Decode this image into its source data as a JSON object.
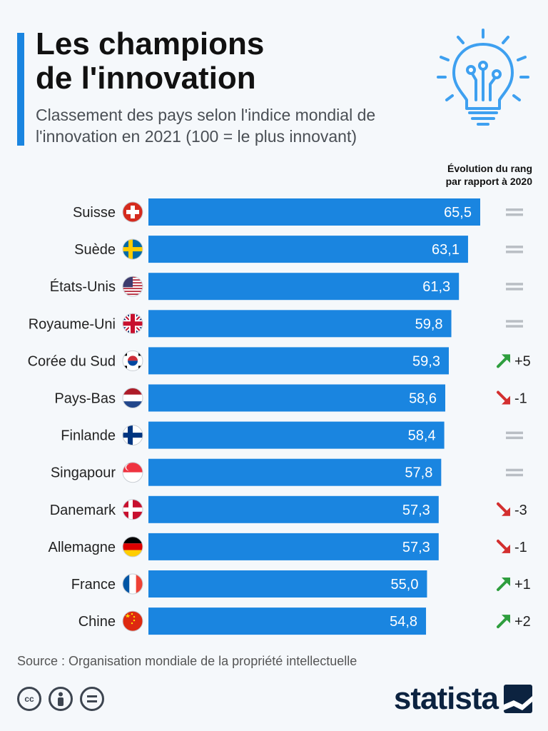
{
  "title": [
    "Les champions",
    "de l'innovation"
  ],
  "subtitle": "Classement des pays selon l'indice mondial de l'innovation en 2021 (100 = le plus innovant)",
  "evolution_header": [
    "Évolution du rang",
    "par rapport à 2020"
  ],
  "source": "Source : Organisation mondiale de la propriété intellectuelle",
  "brand": "statista",
  "license_icons": [
    "cc-icon",
    "by-person-icon",
    "nd-equals-icon"
  ],
  "colors": {
    "bar": "#1a85e0",
    "accent": "#1a85e0",
    "up": "#2e9e3e",
    "down": "#d32f2f",
    "equal": "#b9bec4",
    "brand": "#0c2340"
  },
  "chart_data": {
    "type": "bar",
    "orientation": "horizontal",
    "categories": [
      "Suisse",
      "Suède",
      "États-Unis",
      "Royaume-Uni",
      "Corée du Sud",
      "Pays-Bas",
      "Finlande",
      "Singapour",
      "Danemark",
      "Allemagne",
      "France",
      "Chine"
    ],
    "values": [
      65.5,
      63.1,
      61.3,
      59.8,
      59.3,
      58.6,
      58.4,
      57.8,
      57.3,
      57.3,
      55.0,
      54.8
    ],
    "value_labels": [
      "65,5",
      "63,1",
      "61,3",
      "59,8",
      "59,3",
      "58,6",
      "58,4",
      "57,8",
      "57,3",
      "57,3",
      "55,0",
      "54,8"
    ],
    "rank_change": [
      {
        "direction": "equal",
        "label": ""
      },
      {
        "direction": "equal",
        "label": ""
      },
      {
        "direction": "equal",
        "label": ""
      },
      {
        "direction": "equal",
        "label": ""
      },
      {
        "direction": "up",
        "label": "+5"
      },
      {
        "direction": "down",
        "label": "-1"
      },
      {
        "direction": "equal",
        "label": ""
      },
      {
        "direction": "equal",
        "label": ""
      },
      {
        "direction": "down",
        "label": "-3"
      },
      {
        "direction": "down",
        "label": "-1"
      },
      {
        "direction": "up",
        "label": "+1"
      },
      {
        "direction": "up",
        "label": "+2"
      }
    ],
    "flag_icons": [
      "switzerland-flag-icon",
      "sweden-flag-icon",
      "usa-flag-icon",
      "uk-flag-icon",
      "south-korea-flag-icon",
      "netherlands-flag-icon",
      "finland-flag-icon",
      "singapore-flag-icon",
      "denmark-flag-icon",
      "germany-flag-icon",
      "france-flag-icon",
      "china-flag-icon"
    ],
    "xlim": [
      0,
      65.5
    ],
    "grid": false,
    "legend": "none"
  }
}
